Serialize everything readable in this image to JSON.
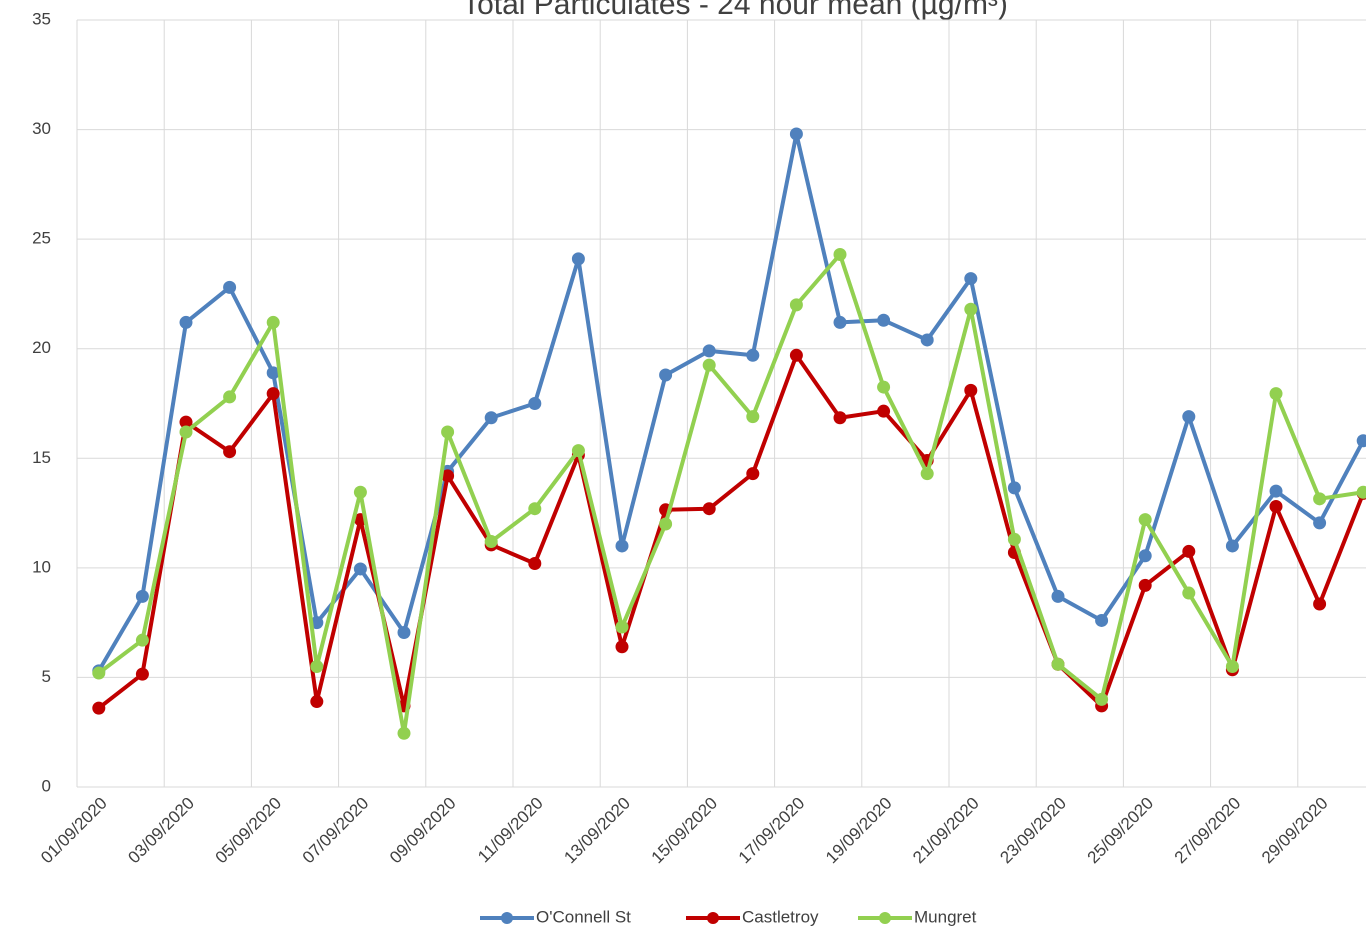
{
  "chart_data": {
    "type": "line",
    "title": "Total Particulates - 24 hour mean (µg/m³)",
    "categories": [
      "01/09/2020",
      null,
      "03/09/2020",
      null,
      "05/09/2020",
      null,
      "07/09/2020",
      null,
      "09/09/2020",
      null,
      "11/09/2020",
      null,
      "13/09/2020",
      null,
      "15/09/2020",
      null,
      "17/09/2020",
      null,
      "19/09/2020",
      null,
      "21/09/2020",
      null,
      "23/09/2020",
      null,
      "25/09/2020",
      null,
      "27/09/2020",
      null,
      "29/09/2020",
      null
    ],
    "series": [
      {
        "name": "O'Connell St",
        "color": "#4f81bd",
        "values": [
          5.3,
          8.7,
          21.2,
          22.8,
          18.9,
          7.5,
          9.95,
          7.05,
          14.4,
          16.85,
          17.5,
          24.1,
          11.0,
          18.8,
          19.9,
          19.7,
          29.8,
          21.2,
          21.3,
          20.4,
          23.2,
          13.65,
          8.7,
          7.6,
          10.55,
          16.9,
          11.0,
          13.5,
          12.05,
          15.8
        ]
      },
      {
        "name": "Castletroy",
        "color": "#c00000",
        "values": [
          3.6,
          5.15,
          16.65,
          15.3,
          17.95,
          3.9,
          12.2,
          3.7,
          14.2,
          11.05,
          10.2,
          15.15,
          6.4,
          12.65,
          12.7,
          14.3,
          19.7,
          16.85,
          17.15,
          14.9,
          18.1,
          10.7,
          5.6,
          3.7,
          9.2,
          10.75,
          5.35,
          12.8,
          8.35,
          13.4
        ]
      },
      {
        "name": "Mungret",
        "color": "#92d050",
        "values": [
          5.2,
          6.7,
          16.2,
          17.8,
          21.2,
          5.5,
          13.45,
          2.45,
          16.2,
          11.2,
          12.7,
          15.35,
          7.3,
          12.0,
          19.25,
          16.9,
          22.0,
          24.3,
          18.25,
          14.3,
          21.8,
          11.3,
          5.6,
          4.0,
          12.2,
          8.85,
          5.5,
          17.95,
          13.15,
          13.45
        ]
      }
    ],
    "ylim": [
      0,
      35
    ],
    "yticks": [
      0,
      5,
      10,
      15,
      20,
      25,
      30,
      35
    ],
    "grid": true,
    "legend": "bottom"
  }
}
